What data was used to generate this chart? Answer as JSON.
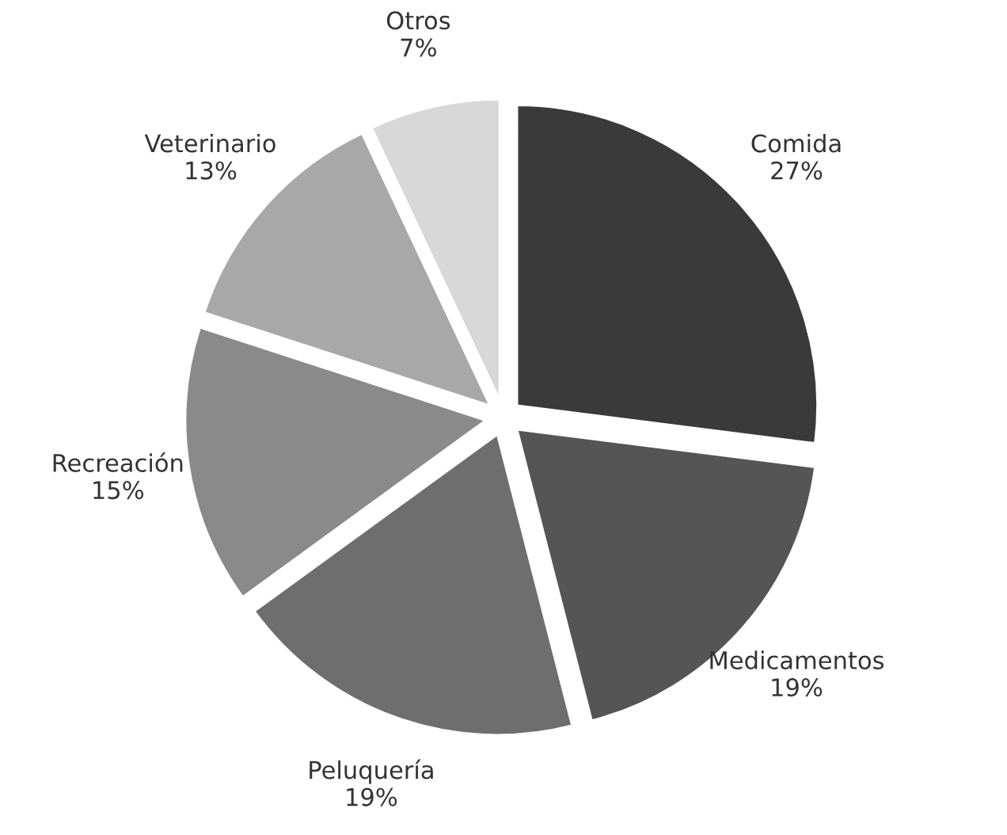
{
  "chart_data": {
    "type": "pie",
    "categories": [
      "Comida",
      "Medicamentos",
      "Peluquería",
      "Recreación",
      "Veterinario",
      "Otros"
    ],
    "values": [
      27,
      19,
      19,
      15,
      13,
      7
    ],
    "colors": [
      "#3a3a3a",
      "#555555",
      "#6e6e6e",
      "#8a8a8a",
      "#a8a8a8",
      "#d8d8d8"
    ],
    "value_labels": [
      "27%",
      "19%",
      "19%",
      "15%",
      "13%",
      "7%"
    ]
  }
}
